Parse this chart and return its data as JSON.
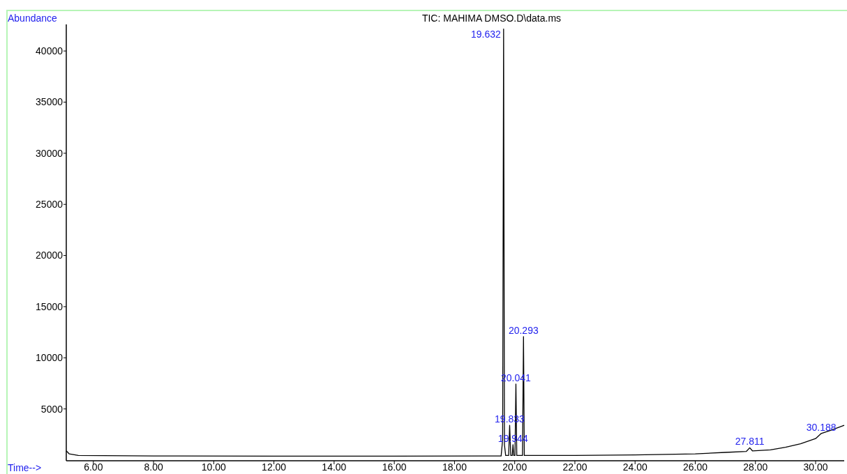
{
  "chart_data": {
    "type": "line",
    "title": "TIC: MAHIMA DMSO.D\\data.ms",
    "xlabel": "Time-->",
    "ylabel": "Abundance",
    "xlim": [
      5.1,
      30.95
    ],
    "ylim": [
      0,
      42600
    ],
    "xticks": [
      {
        "value": 6,
        "label": "6.00"
      },
      {
        "value": 8,
        "label": "8.00"
      },
      {
        "value": 10,
        "label": "10.00"
      },
      {
        "value": 12,
        "label": "12.00"
      },
      {
        "value": 14,
        "label": "14.00"
      },
      {
        "value": 16,
        "label": "16.00"
      },
      {
        "value": 18,
        "label": "18.00"
      },
      {
        "value": 20,
        "label": "20.00"
      },
      {
        "value": 22,
        "label": "22.00"
      },
      {
        "value": 24,
        "label": "24.00"
      },
      {
        "value": 26,
        "label": "26.00"
      },
      {
        "value": 28,
        "label": "28.00"
      },
      {
        "value": 30,
        "label": "30.00"
      }
    ],
    "yticks": [
      5000,
      10000,
      15000,
      20000,
      25000,
      30000,
      35000,
      40000
    ],
    "grid": false,
    "marker": "none",
    "line_style": "solid",
    "series": [
      {
        "color": "#000000",
        "x": [
          5.1,
          5.2,
          5.5,
          8,
          12,
          16,
          19,
          19.55,
          19.6,
          19.632,
          19.66,
          19.7,
          19.8,
          19.833,
          19.87,
          19.92,
          19.944,
          19.97,
          20.01,
          20.041,
          20.07,
          20.26,
          20.293,
          20.32,
          20.5,
          22,
          24,
          26,
          27,
          27.7,
          27.811,
          27.9,
          28.5,
          29,
          29.5,
          30,
          30.188,
          30.5,
          30.95
        ],
        "values": [
          900,
          600,
          450,
          400,
          380,
          380,
          400,
          400,
          2000,
          42150,
          1500,
          450,
          450,
          3400,
          450,
          450,
          1500,
          450,
          450,
          7430,
          450,
          450,
          12070,
          450,
          450,
          450,
          500,
          600,
          750,
          850,
          1200,
          900,
          1000,
          1250,
          1600,
          2100,
          2600,
          2900,
          3400
        ]
      }
    ],
    "annotations": [
      {
        "text": "19.632",
        "x": 19.632,
        "y": 42150
      },
      {
        "text": "19.833",
        "x": 19.833,
        "y": 3400
      },
      {
        "text": "19.944",
        "x": 19.944,
        "y": 1500
      },
      {
        "text": "20.041",
        "x": 20.041,
        "y": 7430
      },
      {
        "text": "20.293",
        "x": 20.293,
        "y": 12070
      },
      {
        "text": "27.811",
        "x": 27.811,
        "y": 1200
      },
      {
        "text": "30.188",
        "x": 30.188,
        "y": 2600
      }
    ]
  }
}
